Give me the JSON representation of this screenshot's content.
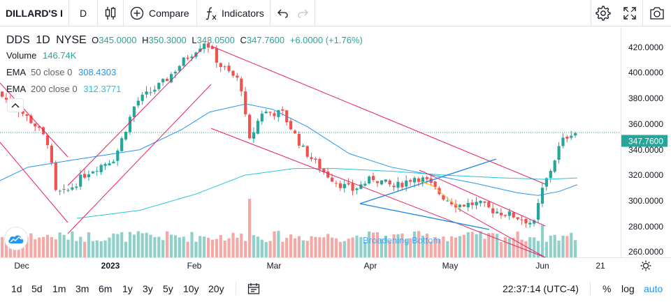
{
  "toolbar": {
    "symbol": "DILLARD'S I",
    "interval": "D",
    "compare_label": "Compare",
    "indicators_label": "Indicators"
  },
  "legend": {
    "ticker": "DDS",
    "interval": "1D",
    "exchange": "NYSE",
    "o_label": "O",
    "o_value": "345.0000",
    "h_label": "H",
    "h_value": "350.3000",
    "l_label": "L",
    "l_value": "343.0500",
    "c_label": "C",
    "c_value": "347.7600",
    "change": "+6.0000 (+1.76%)",
    "volume_label": "Volume",
    "volume_value": "146.74K",
    "ema50_label": "EMA",
    "ema50_params": "50 close 0",
    "ema50_value": "308.4303",
    "ema200_label": "EMA",
    "ema200_params": "200 close 0",
    "ema200_value": "312.3771"
  },
  "price_axis": {
    "ticks": [
      "420.0000",
      "400.0000",
      "380.0000",
      "360.0000",
      "340.0000",
      "320.0000",
      "300.0000",
      "280.0000",
      "260.0000"
    ],
    "last_price": "347.7600"
  },
  "time_axis": {
    "ticks": [
      "Dec",
      "2023",
      "Feb",
      "Mar",
      "Apr",
      "May",
      "Jun",
      "21"
    ]
  },
  "pattern_label": "Broadening Bottom",
  "bottom": {
    "ranges": [
      "1d",
      "5d",
      "1m",
      "3m",
      "6m",
      "1y",
      "3y",
      "5y",
      "10y",
      "20y"
    ],
    "clock": "22:37:14 (UTC-4)",
    "percent": "%",
    "log": "log",
    "auto": "auto"
  },
  "colors": {
    "up": "#26a69a",
    "down": "#ef5350",
    "vol_up": "#8fd0c8",
    "vol_down": "#f4a9a6",
    "ema50": "#2196f3",
    "ema200": "#26c6da",
    "channel": "#e91e63",
    "accent": "#2196f3"
  },
  "chart_data": {
    "type": "candlestick",
    "symbol": "DDS",
    "interval": "1D",
    "y_range": [
      255,
      426
    ],
    "last_close": 347.76,
    "ohlc": {
      "open": 345.0,
      "high": 350.3,
      "low": 343.05,
      "close": 347.76
    },
    "series": [
      {
        "name": "EMA 50 close 0",
        "last": 308.4303
      },
      {
        "name": "EMA 200 close 0",
        "last": 312.3771
      }
    ]
  }
}
